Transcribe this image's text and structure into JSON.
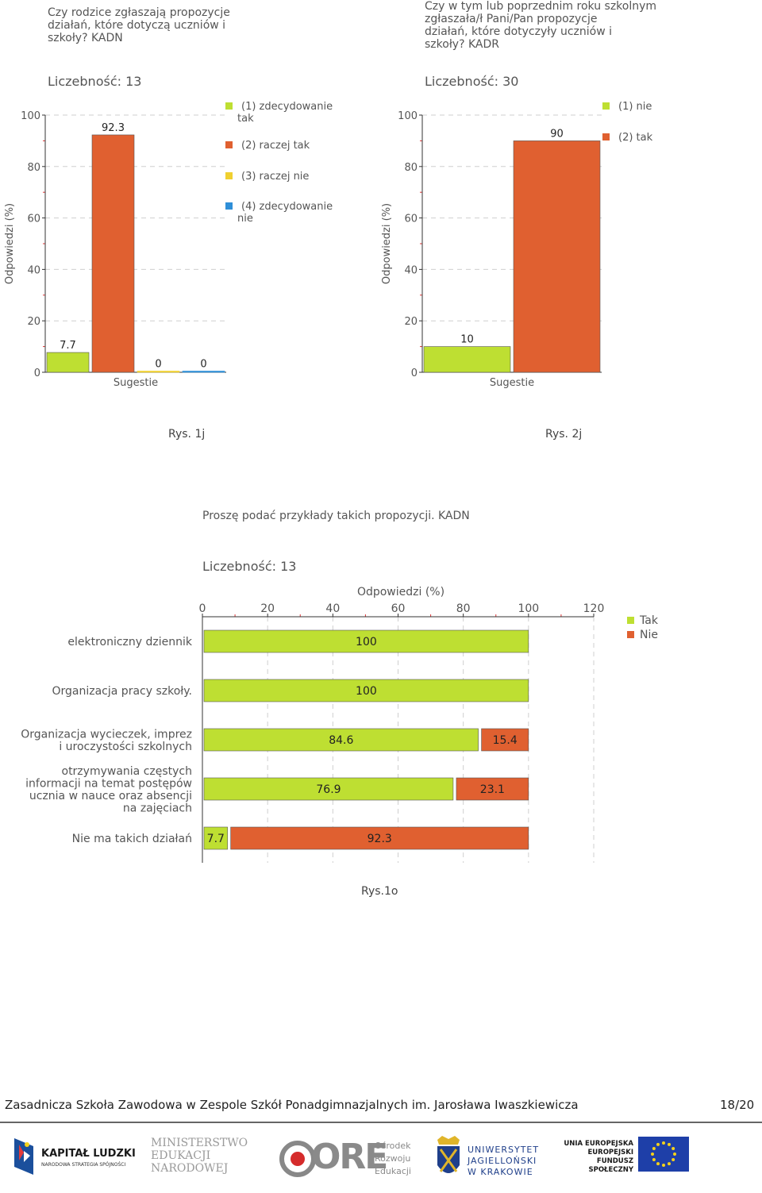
{
  "charts": {
    "c1": {
      "question": "Czy rodzice zgłaszają propozycje\ndziałań, które dotyczą uczniów i\nszkoły? KADN",
      "count": "Liczebność: 13",
      "caption": "Rys. 1j"
    },
    "c2": {
      "question": "Czy w tym lub poprzednim roku szkolnym\nzgłaszała/ł Pani/Pan propozycje\ndziałań, które dotyczyły uczniów i\nszkoły? KADR",
      "count": "Liczebność: 30",
      "caption": "Rys. 2j"
    },
    "c3": {
      "question": "Proszę podać przykłady takich propozycji.  KADN",
      "count": "Liczebność: 13",
      "caption": "Rys.1o"
    }
  },
  "chart_data": [
    {
      "type": "bar",
      "title": "Liczebność: 13",
      "xlabel": "Sugestie",
      "ylabel": "Odpowiedzi (%)",
      "ylim": [
        0,
        100
      ],
      "yticks": [
        "0",
        "20",
        "40",
        "60",
        "80",
        "100"
      ],
      "grid": true,
      "legend_position": "right",
      "series": [
        {
          "name": "(1) zdecydowanie tak",
          "values": [
            7.7
          ],
          "label": "7.7",
          "color": "#bedf32"
        },
        {
          "name": "(2) raczej tak",
          "values": [
            92.3
          ],
          "label": "92.3",
          "color": "#e06030"
        },
        {
          "name": "(3) raczej nie",
          "values": [
            0
          ],
          "label": "0",
          "color": "#f0d030"
        },
        {
          "name": "(4) zdecydowanie nie",
          "values": [
            0
          ],
          "label": "0",
          "color": "#2f8fd8"
        }
      ]
    },
    {
      "type": "bar",
      "title": "Liczebność: 30",
      "xlabel": "Sugestie",
      "ylabel": "Odpowiedzi (%)",
      "ylim": [
        0,
        100
      ],
      "yticks": [
        "0",
        "20",
        "40",
        "60",
        "80",
        "100"
      ],
      "grid": true,
      "legend_position": "right",
      "series": [
        {
          "name": "(1) nie",
          "values": [
            10
          ],
          "label": "10",
          "color": "#bedf32"
        },
        {
          "name": "(2) tak",
          "values": [
            90
          ],
          "label": "90",
          "color": "#e06030"
        }
      ]
    },
    {
      "type": "bar",
      "orientation": "horizontal-stacked",
      "title": "Liczebność: 13",
      "xlabel": "Odpowiedzi (%)",
      "xlim": [
        0,
        120
      ],
      "xticks": [
        "0",
        "20",
        "40",
        "60",
        "80",
        "100",
        "120"
      ],
      "grid": true,
      "legend_position": "right",
      "categories": [
        "elektroniczny dziennik",
        "Organizacja pracy szkoły.",
        "Organizacja wycieczek, imprez\ni uroczystości szkolnych",
        " otrzymywania częstych\ninformacji na temat postępów\nucznia w nauce oraz absencji\nna zajęciach",
        "Nie ma takich działań"
      ],
      "series": [
        {
          "name": "Tak",
          "color": "#bedf32",
          "values": [
            100,
            100,
            84.6,
            76.9,
            7.7
          ],
          "labels": [
            "100",
            "100",
            "84.6",
            "76.9",
            "7.7"
          ]
        },
        {
          "name": "Nie",
          "color": "#e06030",
          "values": [
            0,
            0,
            15.4,
            23.1,
            92.3
          ],
          "labels": [
            "",
            "",
            "15.4",
            "23.1",
            "92.3"
          ]
        }
      ]
    }
  ],
  "footer": {
    "school": "Zasadnicza Szkoła Zawodowa w Zespole Szkół Ponadgimnazjalnych im. Jarosława Iwaszkiewicza",
    "page": "18/20"
  },
  "logos": {
    "kl_title": "KAPITAŁ LUDZKI",
    "kl_sub": "NARODOWA STRATEGIA SPÓJNOŚCI",
    "men_line1": "MINISTERSTWO",
    "men_line2": "EDUKACJI",
    "men_line3": "NARODOWEJ",
    "ore_mark": "ORE",
    "ore_line1": "Ośrodek",
    "ore_line2": "Rozwoju",
    "ore_line3": "Edukacji",
    "uj_line1": "UNIWERSYTET",
    "uj_line2": "JAGIELLOŃSKI",
    "uj_line3": "W KRAKOWIE",
    "ue_line1": "UNIA EUROPEJSKA",
    "ue_line2": "EUROPEJSKI",
    "ue_line3": "FUNDUSZ SPOŁECZNY"
  }
}
